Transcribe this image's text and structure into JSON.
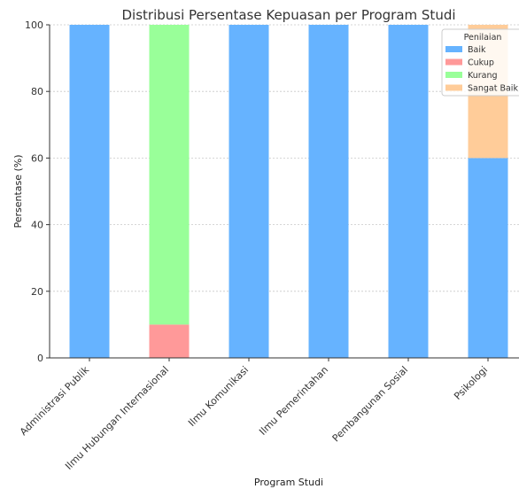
{
  "chart_data": {
    "type": "bar",
    "stacked": true,
    "title": "Distribusi Persentase Kepuasan per Program Studi",
    "xlabel": "Program Studi",
    "ylabel": "Persentase (%)",
    "ylim": [
      0,
      100
    ],
    "yticks": [
      0,
      20,
      40,
      60,
      80,
      100
    ],
    "grid": true,
    "legend_title": "Penilaian",
    "legend_position": "top-right",
    "categories": [
      "Administrasi Publik",
      "Ilmu Hubungan Internasional",
      "Ilmu Komunikasi",
      "Ilmu Pemerintahan",
      "Pembangunan Sosial",
      "Psikologi"
    ],
    "series": [
      {
        "name": "Baik",
        "color": "#66b3ff",
        "values": [
          100,
          0,
          100,
          100,
          100,
          60
        ]
      },
      {
        "name": "Cukup",
        "color": "#ff9999",
        "values": [
          0,
          10,
          0,
          0,
          0,
          0
        ]
      },
      {
        "name": "Kurang",
        "color": "#99ff99",
        "values": [
          0,
          90,
          0,
          0,
          0,
          0
        ]
      },
      {
        "name": "Sangat Baik",
        "color": "#ffcc99",
        "values": [
          0,
          0,
          0,
          0,
          0,
          40
        ]
      }
    ]
  }
}
